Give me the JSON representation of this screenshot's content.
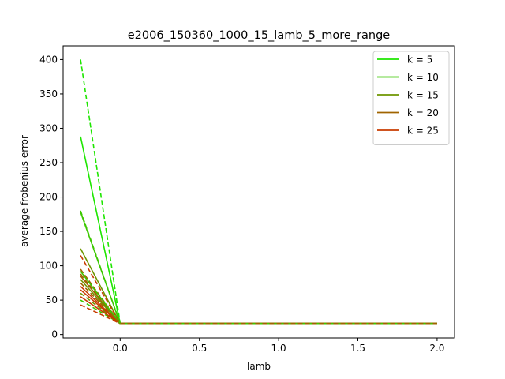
{
  "chart_data": {
    "type": "line",
    "title": "e2006_150360_1000_15_lamb_5_more_range",
    "xlabel": "lamb",
    "ylabel": "average frobenius error",
    "xlim": [
      -0.36,
      2.11
    ],
    "ylim": [
      -5,
      420
    ],
    "xticks": [
      0.0,
      0.5,
      1.0,
      1.5,
      2.0
    ],
    "xtick_labels": [
      "0.0",
      "0.5",
      "1.0",
      "1.5",
      "2.0"
    ],
    "yticks": [
      0,
      50,
      100,
      150,
      200,
      250,
      300,
      350,
      400
    ],
    "ytick_labels": [
      "0",
      "50",
      "100",
      "150",
      "200",
      "250",
      "300",
      "350",
      "400"
    ],
    "grid": false,
    "legend_position": "upper right",
    "legend": [
      {
        "label": "k = 5",
        "color": "#1ee600"
      },
      {
        "label": "k = 10",
        "color": "#3cc800"
      },
      {
        "label": "k = 15",
        "color": "#6e9600"
      },
      {
        "label": "k = 20",
        "color": "#a06400"
      },
      {
        "label": "k = 25",
        "color": "#c83c00"
      }
    ],
    "x": [
      -0.25,
      0.0,
      0.5,
      1.0,
      1.5,
      2.0
    ],
    "series": [
      {
        "name": "k = 5",
        "color": "#1ee600",
        "style": "solid",
        "values": [
          288,
          16,
          16,
          16,
          16,
          16
        ]
      },
      {
        "color": "#1ee600",
        "style": "dashed",
        "values": [
          400,
          16,
          16,
          16,
          16,
          16
        ]
      },
      {
        "name": "k = 10",
        "color": "#3cc800",
        "style": "solid",
        "values": [
          178,
          16,
          16,
          16,
          16,
          16
        ]
      },
      {
        "color": "#3cc800",
        "style": "dashed",
        "values": [
          180,
          16,
          16,
          16,
          16,
          16
        ]
      },
      {
        "name": "k = 15",
        "color": "#6e9600",
        "style": "solid",
        "values": [
          125,
          16,
          16,
          16,
          16,
          16
        ]
      },
      {
        "color": "#6e9600",
        "style": "dashed",
        "values": [
          60,
          16,
          16,
          16,
          16,
          16
        ]
      },
      {
        "name": "k = 20",
        "color": "#a06400",
        "style": "solid",
        "values": [
          85,
          16,
          16,
          16,
          16,
          16
        ]
      },
      {
        "color": "#a06400",
        "style": "dashed",
        "values": [
          95,
          16,
          16,
          16,
          16,
          16
        ]
      },
      {
        "name": "k = 25",
        "color": "#c83c00",
        "style": "solid",
        "values": [
          70,
          16,
          16,
          16,
          16,
          16
        ]
      },
      {
        "color": "#c83c00",
        "style": "dashed",
        "values": [
          115,
          16,
          16,
          16,
          16,
          16
        ]
      },
      {
        "color": "#3cc800",
        "style": "dashed",
        "values": [
          50,
          16,
          16,
          16,
          16,
          16
        ]
      },
      {
        "color": "#6e9600",
        "style": "solid",
        "values": [
          80,
          16,
          16,
          16,
          16,
          16
        ]
      },
      {
        "color": "#a06400",
        "style": "dashed",
        "values": [
          88,
          16,
          16,
          16,
          16,
          16
        ]
      },
      {
        "color": "#c83c00",
        "style": "solid",
        "values": [
          65,
          16,
          16,
          16,
          16,
          16
        ]
      },
      {
        "color": "#c83c00",
        "style": "dashed",
        "values": [
          43,
          16,
          16,
          16,
          16,
          16
        ]
      },
      {
        "color": "#c83c00",
        "style": "solid",
        "values": [
          55,
          16,
          16,
          16,
          16,
          16
        ]
      },
      {
        "color": "#3cc800",
        "style": "solid",
        "values": [
          92,
          16,
          16,
          16,
          16,
          16
        ]
      },
      {
        "color": "#a06400",
        "style": "dashed",
        "values": [
          75,
          16,
          16,
          16,
          16,
          16
        ]
      }
    ]
  }
}
